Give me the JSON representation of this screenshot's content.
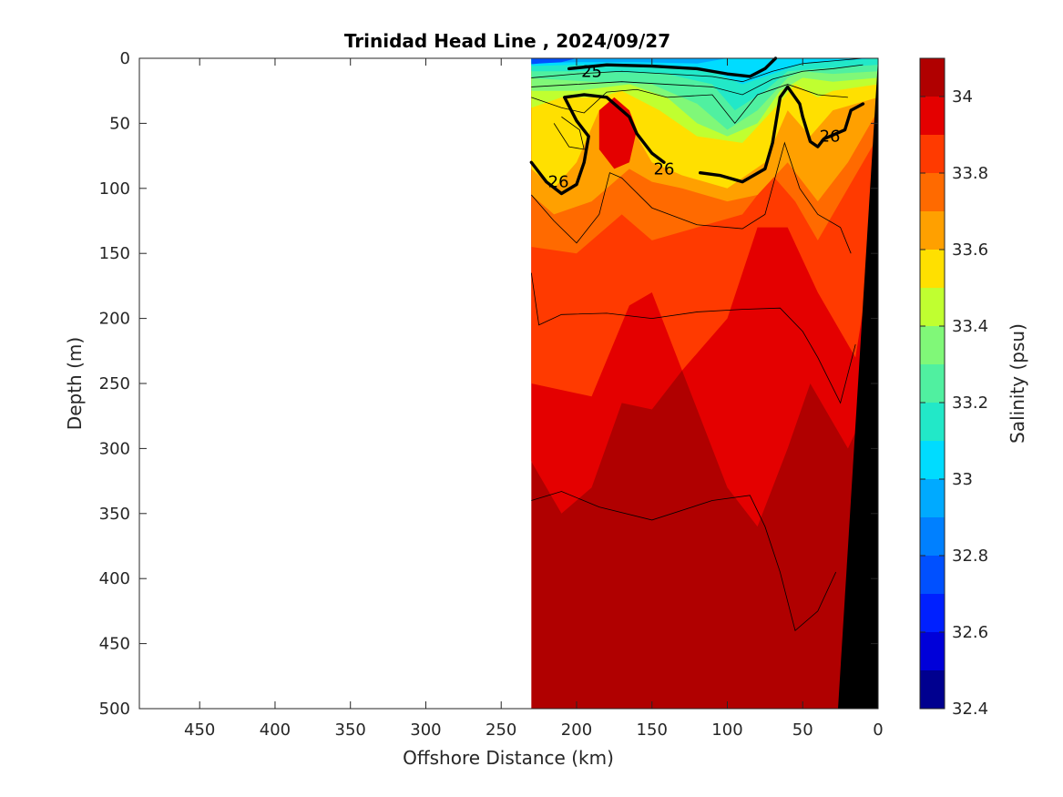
{
  "chart_data": {
    "type": "heatmap",
    "title": "Trinidad Head Line , 2024/09/27",
    "xlabel": "Offshore Distance (km)",
    "ylabel": "Depth (m)",
    "colorbar_label": "Salinity (psu)",
    "x_reversed": true,
    "y_reversed": true,
    "xlim": [
      0,
      490
    ],
    "ylim": [
      0,
      500
    ],
    "x_ticks": [
      450,
      400,
      350,
      300,
      250,
      200,
      150,
      100,
      50,
      0
    ],
    "y_ticks": [
      0,
      50,
      100,
      150,
      200,
      250,
      300,
      350,
      400,
      450,
      500
    ],
    "colorbar_ticks": [
      "34",
      "33.8",
      "33.6",
      "33.4",
      "33.2",
      "33",
      "32.8",
      "32.6",
      "32.4"
    ],
    "colorbar_range": [
      32.4,
      34.1
    ],
    "colorbar_levels": [
      {
        "min": 32.4,
        "max": 32.5,
        "color": "#00008f"
      },
      {
        "min": 32.5,
        "max": 32.6,
        "color": "#0000d9"
      },
      {
        "min": 32.6,
        "max": 32.7,
        "color": "#0020ff"
      },
      {
        "min": 32.7,
        "max": 32.8,
        "color": "#0050ff"
      },
      {
        "min": 32.8,
        "max": 32.9,
        "color": "#0080ff"
      },
      {
        "min": 32.9,
        "max": 33.0,
        "color": "#00aaff"
      },
      {
        "min": 33.0,
        "max": 33.1,
        "color": "#00dcff"
      },
      {
        "min": 33.1,
        "max": 33.2,
        "color": "#22e8c8"
      },
      {
        "min": 33.2,
        "max": 33.3,
        "color": "#50f0a0"
      },
      {
        "min": 33.3,
        "max": 33.4,
        "color": "#80f878"
      },
      {
        "min": 33.4,
        "max": 33.5,
        "color": "#c0ff30"
      },
      {
        "min": 33.5,
        "max": 33.6,
        "color": "#ffe000"
      },
      {
        "min": 33.6,
        "max": 33.7,
        "color": "#ffa000"
      },
      {
        "min": 33.7,
        "max": 33.8,
        "color": "#ff6a00"
      },
      {
        "min": 33.8,
        "max": 33.9,
        "color": "#ff3a00"
      },
      {
        "min": 33.9,
        "max": 34.0,
        "color": "#e40000"
      },
      {
        "min": 34.0,
        "max": 34.1,
        "color": "#b00000"
      }
    ],
    "section_x_range": [
      0,
      230
    ],
    "density_labels": [
      {
        "text": "25",
        "x": 190,
        "y": 10
      },
      {
        "text": "26",
        "x": 212,
        "y": 95
      },
      {
        "text": "26",
        "x": 142,
        "y": 85
      },
      {
        "text": "26",
        "x": 32,
        "y": 60
      }
    ],
    "thick_contours_sigma": [
      {
        "level": "25",
        "points": [
          [
            205,
            8
          ],
          [
            180,
            5
          ],
          [
            150,
            6
          ],
          [
            120,
            8
          ],
          [
            100,
            12
          ],
          [
            85,
            14
          ],
          [
            75,
            8
          ],
          [
            68,
            0
          ]
        ]
      },
      {
        "level": "26",
        "points": [
          [
            230,
            80
          ],
          [
            220,
            95
          ],
          [
            210,
            104
          ],
          [
            200,
            97
          ],
          [
            195,
            80
          ],
          [
            192,
            60
          ],
          [
            200,
            48
          ],
          [
            208,
            30
          ],
          [
            195,
            28
          ],
          [
            180,
            30
          ],
          [
            165,
            45
          ],
          [
            160,
            58
          ],
          [
            150,
            73
          ],
          [
            142,
            80
          ]
        ]
      },
      {
        "level": "26",
        "points": [
          [
            118,
            88
          ],
          [
            105,
            90
          ],
          [
            90,
            95
          ],
          [
            75,
            85
          ],
          [
            70,
            65
          ],
          [
            65,
            30
          ],
          [
            60,
            22
          ],
          [
            52,
            35
          ],
          [
            50,
            45
          ],
          [
            45,
            64
          ],
          [
            40,
            68
          ],
          [
            36,
            62
          ],
          [
            22,
            55
          ],
          [
            18,
            40
          ],
          [
            10,
            35
          ]
        ]
      }
    ],
    "thin_contours_sigma": [
      [
        [
          230,
          15
        ],
        [
          200,
          12
        ],
        [
          170,
          10
        ],
        [
          140,
          12
        ],
        [
          110,
          14
        ],
        [
          90,
          18
        ],
        [
          70,
          10
        ],
        [
          50,
          4
        ],
        [
          30,
          2
        ],
        [
          10,
          0
        ]
      ],
      [
        [
          230,
          22
        ],
        [
          200,
          20
        ],
        [
          170,
          18
        ],
        [
          140,
          20
        ],
        [
          110,
          22
        ],
        [
          90,
          28
        ],
        [
          70,
          16
        ],
        [
          50,
          10
        ],
        [
          30,
          8
        ],
        [
          10,
          5
        ]
      ],
      [
        [
          230,
          30
        ],
        [
          210,
          38
        ],
        [
          195,
          42
        ],
        [
          180,
          26
        ],
        [
          160,
          24
        ],
        [
          140,
          30
        ],
        [
          110,
          28
        ],
        [
          95,
          50
        ],
        [
          80,
          28
        ],
        [
          60,
          20
        ],
        [
          40,
          28
        ],
        [
          20,
          30
        ]
      ],
      [
        [
          215,
          50
        ],
        [
          205,
          68
        ],
        [
          195,
          70
        ],
        [
          198,
          55
        ],
        [
          210,
          45
        ]
      ],
      [
        [
          230,
          105
        ],
        [
          215,
          125
        ],
        [
          200,
          142
        ],
        [
          185,
          120
        ],
        [
          178,
          88
        ],
        [
          170,
          92
        ],
        [
          150,
          115
        ],
        [
          120,
          128
        ],
        [
          90,
          131
        ],
        [
          75,
          120
        ],
        [
          62,
          65
        ],
        [
          52,
          100
        ],
        [
          40,
          120
        ],
        [
          25,
          130
        ],
        [
          18,
          150
        ]
      ],
      [
        [
          230,
          165
        ],
        [
          225,
          205
        ],
        [
          210,
          197
        ],
        [
          180,
          196
        ],
        [
          150,
          200
        ],
        [
          120,
          195
        ],
        [
          90,
          193
        ],
        [
          65,
          192
        ],
        [
          50,
          210
        ],
        [
          40,
          230
        ],
        [
          25,
          265
        ],
        [
          15,
          220
        ]
      ],
      [
        [
          230,
          340
        ],
        [
          210,
          333
        ],
        [
          185,
          345
        ],
        [
          150,
          355
        ],
        [
          110,
          340
        ],
        [
          85,
          336
        ],
        [
          75,
          360
        ],
        [
          65,
          395
        ],
        [
          55,
          440
        ],
        [
          40,
          425
        ],
        [
          28,
          395
        ]
      ]
    ]
  }
}
